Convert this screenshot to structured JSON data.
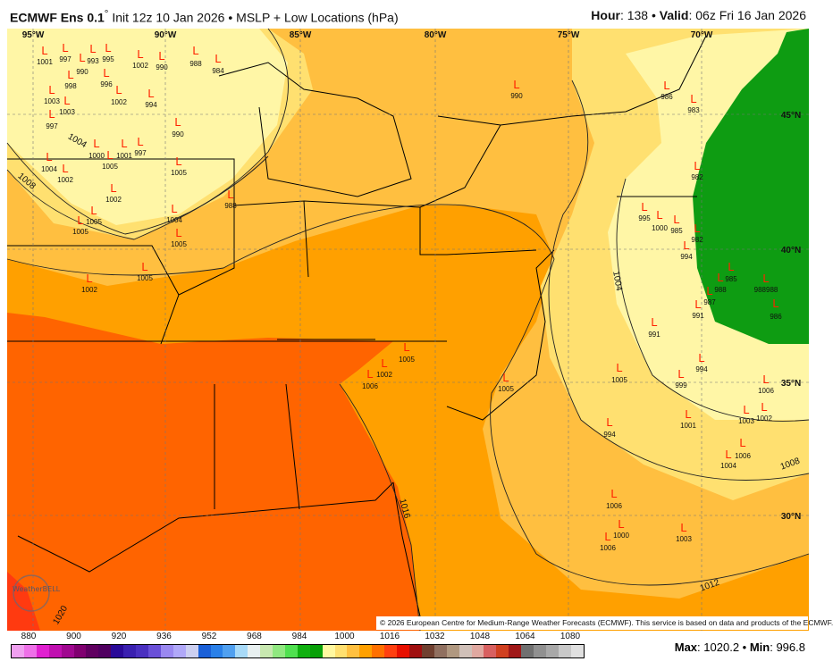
{
  "header": {
    "model": "ECMWF Ens 0.1",
    "degree": "°",
    "init": "Init 12z 10 Jan 2026",
    "sep": "•",
    "product": "MSLP + Low Locations (hPa)",
    "hour_label": "Hour",
    "hour": "138",
    "valid_label": "Valid",
    "valid": "06z Fri 16 Jan 2026"
  },
  "map": {
    "lon_labels": [
      "95°W",
      "90°W",
      "85°W",
      "80°W",
      "75°W",
      "70°W"
    ],
    "lat_labels": [
      "45°N",
      "40°N",
      "35°N",
      "30°N"
    ],
    "contour_labels": [
      "1004",
      "1008",
      "1004",
      "1008",
      "1016",
      "1012",
      "1020"
    ],
    "low_marker": "L",
    "low_color": "#ff2200",
    "lows": [
      "1001",
      "997",
      "993",
      "995",
      "990",
      "996",
      "1003",
      "1003",
      "998",
      "997",
      "1002",
      "990",
      "988",
      "984",
      "1002",
      "994",
      "990",
      "1000",
      "1005",
      "1001",
      "997",
      "1004",
      "1002",
      "1002",
      "1005",
      "988",
      "1005",
      "1005",
      "1004",
      "1005",
      "1005",
      "1002",
      "990",
      "986",
      "983",
      "982",
      "995",
      "1000",
      "985",
      "982",
      "994",
      "985",
      "988",
      "988988",
      "986",
      "987",
      "991",
      "991",
      "994",
      "999",
      "1005",
      "1006",
      "1002",
      "1003",
      "1001",
      "994",
      "1006",
      "1004",
      "1006",
      "1000",
      "1006",
      "1003",
      "1005",
      "1002",
      "1006",
      "1005"
    ],
    "fill_colors": {
      "below_1000": "#0e9c12",
      "1000_1004": "#fff6a6",
      "1004_1008": "#ffe070",
      "1008_1012": "#ffbf40",
      "1012_1016": "#ffa000",
      "1016_1020": "#ff6400",
      "1020_1024": "#ff3a10"
    },
    "logo_text": "WeatherBELL"
  },
  "credit": "© 2026 European Centre for Medium-Range Weather Forecasts (ECMWF). This service is based on data and products of the ECMWF.",
  "colorbar": {
    "ticks": [
      "880",
      "900",
      "920",
      "936",
      "952",
      "968",
      "984",
      "1000",
      "1016",
      "1032",
      "1048",
      "1064",
      "1080"
    ],
    "colors": [
      "#f0a0f0",
      "#ee70e8",
      "#e020d0",
      "#c010b0",
      "#a00890",
      "#800070",
      "#600060",
      "#500060",
      "#2a0a98",
      "#3a20b0",
      "#4a30c0",
      "#6a50d8",
      "#9a88f0",
      "#b0a8f8",
      "#cccff0",
      "#1a60d8",
      "#2a80e8",
      "#50a0f0",
      "#a8daf8",
      "#e8f0f0",
      "#c8e8b0",
      "#90e880",
      "#50e050",
      "#10b010",
      "#08a008",
      "#fff8a0",
      "#ffe070",
      "#ffc040",
      "#ffa000",
      "#ff7000",
      "#ff4010",
      "#e81000",
      "#a01010",
      "#704030",
      "#907060",
      "#b09880",
      "#d0c0b8",
      "#e0a8a0",
      "#d86060",
      "#d04020",
      "#a01818",
      "#707070",
      "#909090",
      "#a8a8a8",
      "#c8c8c8",
      "#e0e0e0"
    ]
  },
  "stats": {
    "max_label": "Max",
    "max": "1020.2",
    "min_label": "Min",
    "min": "996.8"
  }
}
